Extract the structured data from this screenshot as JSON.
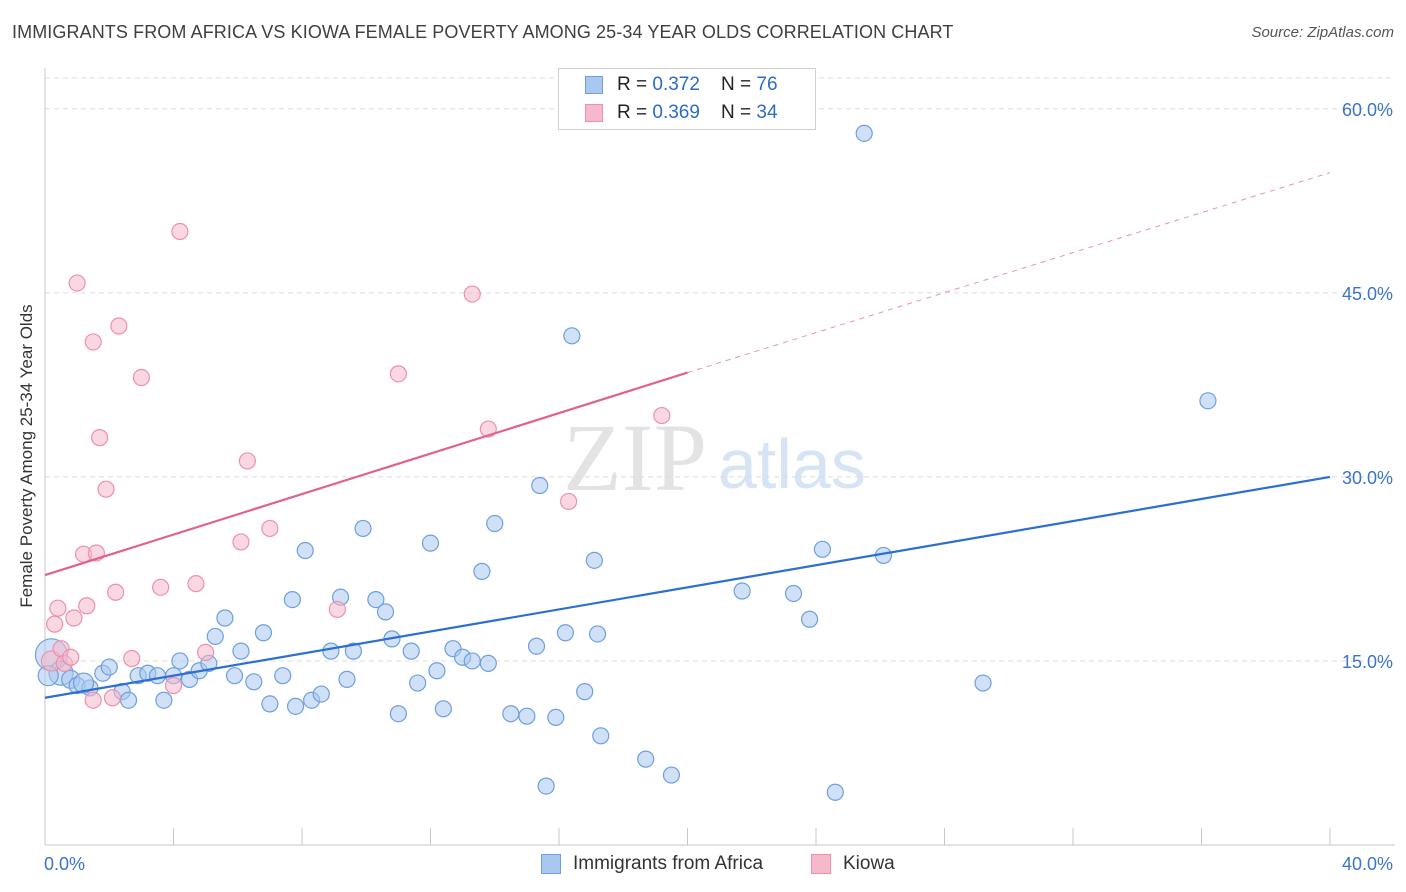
{
  "title": "IMMIGRANTS FROM AFRICA VS KIOWA FEMALE POVERTY AMONG 25-34 YEAR OLDS CORRELATION CHART",
  "source": "Source: ZipAtlas.com",
  "watermark": {
    "zip": "ZIP",
    "atlas": "atlas"
  },
  "colors": {
    "blue_fill": "#a9c8f0",
    "blue_stroke": "#6e9fdc",
    "blue_line": "#2b6fd1",
    "pink_fill": "#f6b8cb",
    "pink_stroke": "#ee8fac",
    "pink_line": "#e0628f",
    "tick_label": "#3b74c9",
    "grid": "#dcdcdc"
  },
  "legend": {
    "rows": [
      {
        "r_label": "R = ",
        "r_value": "0.372",
        "n_label": "N = ",
        "n_value": "76"
      },
      {
        "r_label": "R = ",
        "r_value": "0.369",
        "n_label": "N = ",
        "n_value": "34"
      }
    ]
  },
  "bottom_legend": {
    "series1": "Immigrants from Africa",
    "series2": "Kiowa"
  },
  "chart_data": {
    "type": "scatter",
    "title": "IMMIGRANTS FROM AFRICA VS KIOWA FEMALE POVERTY AMONG 25-34 YEAR OLDS CORRELATION CHART",
    "xlabel": "",
    "ylabel": "Female Poverty Among 25-34 Year Olds",
    "xlim": [
      0,
      40
    ],
    "ylim": [
      0,
      63
    ],
    "x_tick_labels": [
      "0.0%",
      "40.0%"
    ],
    "y_ticks": [
      15,
      30,
      45,
      60
    ],
    "y_tick_labels": [
      "15.0%",
      "30.0%",
      "45.0%",
      "60.0%"
    ],
    "grid": true,
    "legend_placement": "top-center",
    "series": [
      {
        "name": "Immigrants from Africa",
        "r": 0.372,
        "n": 76,
        "trend": {
          "x": [
            0,
            40
          ],
          "y": [
            12.0,
            30.0
          ]
        },
        "points": [
          [
            0.2,
            15.5,
            16
          ],
          [
            0.5,
            14.0,
            12
          ],
          [
            0.8,
            13.5,
            9
          ],
          [
            1.0,
            13.0,
            8
          ],
          [
            1.4,
            12.8,
            8
          ],
          [
            1.8,
            14.0,
            8
          ],
          [
            2.0,
            14.5,
            8
          ],
          [
            2.4,
            12.5,
            8
          ],
          [
            2.6,
            11.8,
            8
          ],
          [
            2.9,
            13.8,
            8
          ],
          [
            3.2,
            14.0,
            8
          ],
          [
            3.5,
            13.8,
            8
          ],
          [
            3.7,
            11.8,
            8
          ],
          [
            4.0,
            13.8,
            8
          ],
          [
            4.2,
            15.0,
            8
          ],
          [
            4.5,
            13.5,
            8
          ],
          [
            4.8,
            14.2,
            8
          ],
          [
            5.1,
            14.8,
            8
          ],
          [
            5.3,
            17.0,
            8
          ],
          [
            5.6,
            18.5,
            8
          ],
          [
            5.9,
            13.8,
            8
          ],
          [
            6.1,
            15.8,
            8
          ],
          [
            6.5,
            13.3,
            8
          ],
          [
            6.8,
            17.3,
            8
          ],
          [
            7.0,
            11.5,
            8
          ],
          [
            7.4,
            13.8,
            8
          ],
          [
            7.7,
            20.0,
            8
          ],
          [
            7.8,
            11.3,
            8
          ],
          [
            8.1,
            24.0,
            8
          ],
          [
            8.3,
            11.8,
            8
          ],
          [
            8.6,
            12.3,
            8
          ],
          [
            8.9,
            15.8,
            8
          ],
          [
            9.2,
            20.2,
            8
          ],
          [
            9.4,
            13.5,
            8
          ],
          [
            9.6,
            15.8,
            8
          ],
          [
            9.9,
            25.8,
            8
          ],
          [
            10.3,
            20.0,
            8
          ],
          [
            10.6,
            19.0,
            8
          ],
          [
            10.8,
            16.8,
            8
          ],
          [
            11.0,
            10.7,
            8
          ],
          [
            11.4,
            15.8,
            8
          ],
          [
            11.6,
            13.2,
            8
          ],
          [
            12.0,
            24.6,
            8
          ],
          [
            12.2,
            14.2,
            8
          ],
          [
            12.4,
            11.1,
            8
          ],
          [
            12.7,
            16.0,
            8
          ],
          [
            13.0,
            15.3,
            8
          ],
          [
            13.3,
            15.0,
            8
          ],
          [
            13.6,
            22.3,
            8
          ],
          [
            13.8,
            14.8,
            8
          ],
          [
            14.0,
            26.2,
            8
          ],
          [
            14.5,
            10.7,
            8
          ],
          [
            15.0,
            10.5,
            8
          ],
          [
            15.3,
            16.2,
            8
          ],
          [
            15.4,
            29.3,
            8
          ],
          [
            15.6,
            4.8,
            8
          ],
          [
            15.9,
            10.4,
            8
          ],
          [
            16.2,
            17.3,
            8
          ],
          [
            16.4,
            41.5,
            8
          ],
          [
            16.8,
            12.5,
            8
          ],
          [
            17.1,
            23.2,
            8
          ],
          [
            17.3,
            8.9,
            8
          ],
          [
            17.2,
            17.2,
            8
          ],
          [
            18.7,
            7.0,
            8
          ],
          [
            19.5,
            5.7,
            8
          ],
          [
            21.7,
            20.7,
            8
          ],
          [
            23.3,
            20.5,
            8
          ],
          [
            23.8,
            18.4,
            8
          ],
          [
            24.2,
            24.1,
            8
          ],
          [
            24.6,
            4.3,
            8
          ],
          [
            25.5,
            58.0,
            8
          ],
          [
            26.1,
            23.6,
            8
          ],
          [
            29.2,
            13.2,
            8
          ],
          [
            36.2,
            36.2,
            8
          ],
          [
            0.1,
            13.8,
            10
          ],
          [
            1.2,
            13.2,
            10
          ]
        ]
      },
      {
        "name": "Kiowa",
        "r": 0.369,
        "n": 34,
        "trend": {
          "x": [
            0,
            20
          ],
          "y": [
            22.0,
            38.5
          ]
        },
        "trend_dashed": {
          "x": [
            20,
            40
          ],
          "y": [
            38.5,
            54.8
          ]
        },
        "points": [
          [
            0.2,
            15.0,
            10
          ],
          [
            0.3,
            18.0,
            8
          ],
          [
            0.4,
            19.3,
            8
          ],
          [
            0.5,
            16.0,
            8
          ],
          [
            0.6,
            14.8,
            8
          ],
          [
            0.8,
            15.3,
            8
          ],
          [
            0.9,
            18.5,
            8
          ],
          [
            1.0,
            45.8,
            8
          ],
          [
            1.2,
            23.7,
            8
          ],
          [
            1.3,
            19.5,
            8
          ],
          [
            1.5,
            41.0,
            8
          ],
          [
            1.6,
            23.8,
            8
          ],
          [
            1.7,
            33.2,
            8
          ],
          [
            1.9,
            29.0,
            8
          ],
          [
            2.2,
            20.6,
            8
          ],
          [
            2.3,
            42.3,
            8
          ],
          [
            2.7,
            15.2,
            8
          ],
          [
            3.0,
            38.1,
            8
          ],
          [
            3.6,
            21.0,
            8
          ],
          [
            4.0,
            13.0,
            8
          ],
          [
            4.2,
            50.0,
            8
          ],
          [
            4.7,
            21.3,
            8
          ],
          [
            5.0,
            15.7,
            8
          ],
          [
            6.1,
            24.7,
            8
          ],
          [
            6.3,
            31.3,
            8
          ],
          [
            7.0,
            25.8,
            8
          ],
          [
            9.1,
            19.2,
            8
          ],
          [
            11.0,
            38.4,
            8
          ],
          [
            13.3,
            44.9,
            8
          ],
          [
            13.8,
            33.9,
            8
          ],
          [
            16.3,
            28.0,
            8
          ],
          [
            19.2,
            35.0,
            8
          ],
          [
            1.5,
            11.8,
            8
          ],
          [
            2.1,
            12.0,
            8
          ]
        ]
      }
    ]
  }
}
